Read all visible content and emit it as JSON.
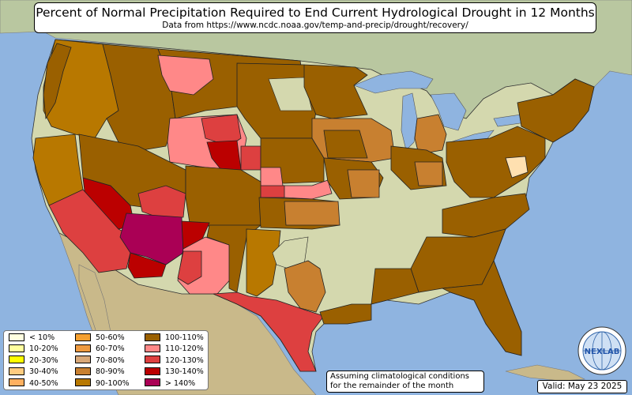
{
  "title": "Percent of Normal Precipitation Required to End Current Hydrological Drought in 12 Months",
  "subtitle": "Data from https://www.ncdc.noaa.gov/temp-and-precip/drought/recovery/",
  "legend": {
    "items": [
      {
        "label": "< 10%",
        "color": "#ffffe0"
      },
      {
        "label": "10-20%",
        "color": "#ffff9e"
      },
      {
        "label": "20-30%",
        "color": "#ffff00"
      },
      {
        "label": "30-40%",
        "color": "#ffcc80"
      },
      {
        "label": "40-50%",
        "color": "#ffb060"
      },
      {
        "label": "50-60%",
        "color": "#f5a030"
      },
      {
        "label": "60-70%",
        "color": "#ee9a40"
      },
      {
        "label": "70-80%",
        "color": "#d8a878"
      },
      {
        "label": "80-90%",
        "color": "#c88030"
      },
      {
        "label": "90-100%",
        "color": "#b87800"
      },
      {
        "label": "100-110%",
        "color": "#9a6000"
      },
      {
        "label": "110-120%",
        "color": "#ff8888"
      },
      {
        "label": "120-130%",
        "color": "#dd4040"
      },
      {
        "label": "130-140%",
        "color": "#bb0000"
      },
      {
        "label": "> 140%",
        "color": "#aa0055"
      }
    ]
  },
  "note": {
    "line1": "Assuming climatological conditions",
    "line2": "for the remainder of the month"
  },
  "valid": "Valid: May 23 2025",
  "logo": {
    "text": "NEXLAB",
    "icon": "nexlab-globe-logo"
  }
}
